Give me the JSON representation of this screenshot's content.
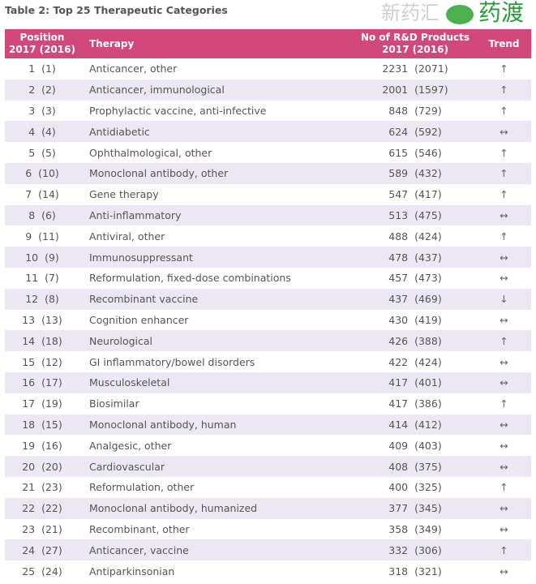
{
  "title": "Table 2: Top 25 Therapeutic Categories",
  "headers": {
    "position": "Position\n2017 (2016)",
    "therapy": "Therapy",
    "products": "No of R&D Products\n2017 (2016)",
    "trend": "Trend"
  },
  "rows": [
    {
      "pos": "1  (1)",
      "therapy": "Anticancer, other",
      "products": "2231  (2071)",
      "trend": "↑"
    },
    {
      "pos": "2  (2)",
      "therapy": "Anticancer, immunological",
      "products": "2001  (1597)",
      "trend": "↑"
    },
    {
      "pos": "3  (3)",
      "therapy": "Prophylactic vaccine, anti-infective",
      "products": "848  (729)",
      "trend": "↑"
    },
    {
      "pos": "4  (4)",
      "therapy": "Antidiabetic",
      "products": "624  (592)",
      "trend": "↔"
    },
    {
      "pos": "5  (5)",
      "therapy": "Ophthalmological, other",
      "products": "615  (546)",
      "trend": "↑"
    },
    {
      "pos": "6  (10)",
      "therapy": "Monoclonal antibody, other",
      "products": "589  (432)",
      "trend": "↑"
    },
    {
      "pos": "7  (14)",
      "therapy": "Gene therapy",
      "products": "547  (417)",
      "trend": "↑"
    },
    {
      "pos": "8  (6)",
      "therapy": "Anti-inflammatory",
      "products": "513  (475)",
      "trend": "↔"
    },
    {
      "pos": "9  (11)",
      "therapy": "Antiviral, other",
      "products": "488  (424)",
      "trend": "↑"
    },
    {
      "pos": "10  (9)",
      "therapy": "Immunosuppressant",
      "products": "478  (437)",
      "trend": "↔"
    },
    {
      "pos": "11  (7)",
      "therapy": "Reformulation, fixed-dose combinations",
      "products": "457  (473)",
      "trend": "↔"
    },
    {
      "pos": "12  (8)",
      "therapy": "Recombinant vaccine",
      "products": "437  (469)",
      "trend": "↓"
    },
    {
      "pos": "13  (13)",
      "therapy": "Cognition enhancer",
      "products": "430  (419)",
      "trend": "↔"
    },
    {
      "pos": "14  (18)",
      "therapy": "Neurological",
      "products": "426  (388)",
      "trend": "↑"
    },
    {
      "pos": "15  (12)",
      "therapy": "GI inflammatory/bowel disorders",
      "products": "422  (424)",
      "trend": "↔"
    },
    {
      "pos": "16  (17)",
      "therapy": "Musculoskeletal",
      "products": "417  (401)",
      "trend": "↔"
    },
    {
      "pos": "17  (19)",
      "therapy": "Biosimilar",
      "products": "417  (386)",
      "trend": "↑"
    },
    {
      "pos": "18  (15)",
      "therapy": "Monoclonal antibody, human",
      "products": "414  (412)",
      "trend": "↔"
    },
    {
      "pos": "19  (16)",
      "therapy": "Analgesic, other",
      "products": "409  (403)",
      "trend": "↔"
    },
    {
      "pos": "20  (20)",
      "therapy": "Cardiovascular",
      "products": "408  (375)",
      "trend": "↔"
    },
    {
      "pos": "21  (23)",
      "therapy": "Reformulation, other",
      "products": "400  (325)",
      "trend": "↑"
    },
    {
      "pos": "22  (22)",
      "therapy": "Monoclonal antibody, humanized",
      "products": "377  (345)",
      "trend": "↔"
    },
    {
      "pos": "23  (21)",
      "therapy": "Recombinant, other",
      "products": "358  (349)",
      "trend": "↔"
    },
    {
      "pos": "24  (27)",
      "therapy": "Anticancer, vaccine",
      "products": "332  (306)",
      "trend": "↑"
    },
    {
      "pos": "25  (24)",
      "therapy": "Antiparkinsonian",
      "products": "318  (321)",
      "trend": "↔"
    }
  ],
  "watermark": {
    "text1": "新药汇",
    "text2": "药渡"
  },
  "colors": {
    "header_bg": "#d2487a",
    "stripe": "#ebe8f3"
  }
}
